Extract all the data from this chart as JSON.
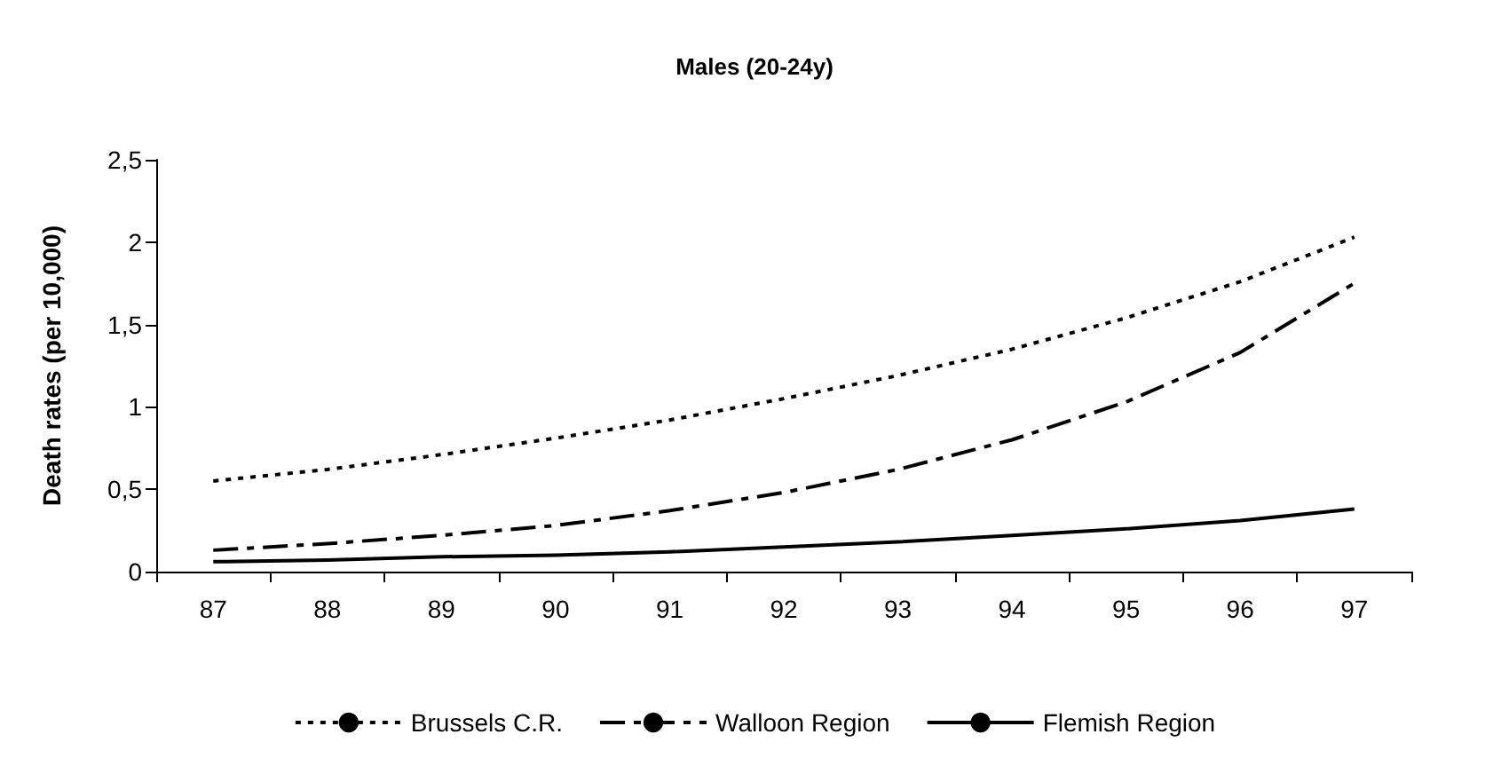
{
  "chart_data": {
    "type": "line",
    "title": "Males (20-24y)",
    "ylabel": "Death rates (per 10,000)",
    "categories": [
      "87",
      "88",
      "89",
      "90",
      "91",
      "92",
      "93",
      "94",
      "95",
      "96",
      "97"
    ],
    "series": [
      {
        "name": "Brussels C.R.",
        "color": "#000000",
        "line_style": "dotted",
        "values": [
          0.55,
          0.62,
          0.71,
          0.81,
          0.92,
          1.05,
          1.19,
          1.35,
          1.54,
          1.76,
          2.03
        ]
      },
      {
        "name": "Walloon Region",
        "color": "#000000",
        "line_style": "dashed",
        "values": [
          0.13,
          0.17,
          0.22,
          0.28,
          0.37,
          0.48,
          0.62,
          0.8,
          1.03,
          1.33,
          1.75
        ]
      },
      {
        "name": "Flemish Region",
        "color": "#000000",
        "line_style": "solid",
        "values": [
          0.06,
          0.07,
          0.09,
          0.1,
          0.12,
          0.15,
          0.18,
          0.22,
          0.26,
          0.31,
          0.38
        ]
      }
    ],
    "ylim": [
      0,
      2.5
    ],
    "yticks": [
      {
        "value": 0,
        "label": "0"
      },
      {
        "value": 0.5,
        "label": "0,5"
      },
      {
        "value": 1,
        "label": "1"
      },
      {
        "value": 1.5,
        "label": "1,5"
      },
      {
        "value": 2,
        "label": "2"
      },
      {
        "value": 2.5,
        "label": "2,5"
      }
    ],
    "grid": false,
    "legend": "bottom",
    "marker": "none"
  }
}
